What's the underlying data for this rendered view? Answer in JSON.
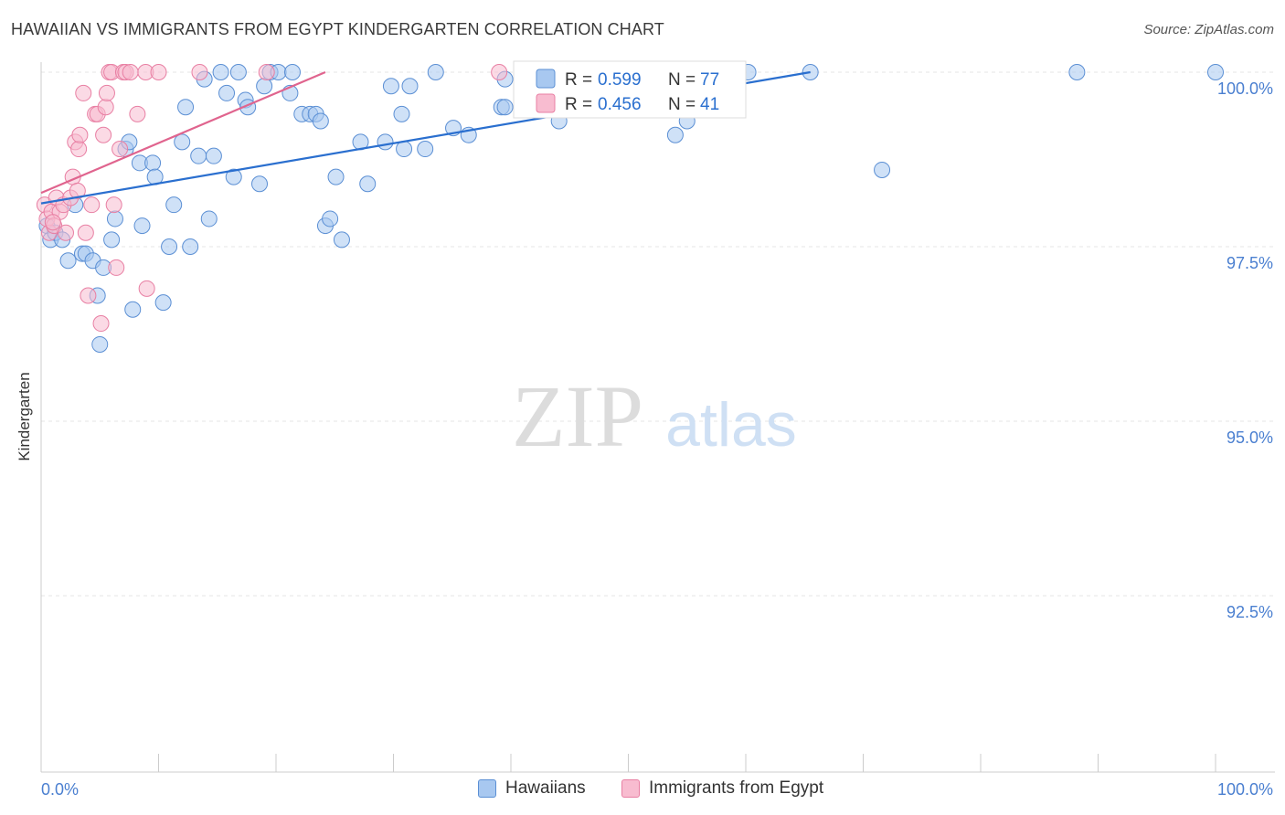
{
  "header": {
    "title": "HAWAIIAN VS IMMIGRANTS FROM EGYPT KINDERGARTEN CORRELATION CHART",
    "source": "Source: ZipAtlas.com"
  },
  "watermark": {
    "zip": "ZIP",
    "atlas": "atlas"
  },
  "colors": {
    "blue_fill": "#a8c8f0",
    "blue_stroke": "#5b8fd4",
    "blue_line": "#2a6fcf",
    "pink_fill": "#f8bcd0",
    "pink_stroke": "#e87fa3",
    "pink_line": "#e0648e",
    "tick_label": "#4a7fd0",
    "grid": "#e4e4e4"
  },
  "legend_top": {
    "rows": [
      {
        "r_label": "R = ",
        "r_value": "0.599",
        "n_label": "N = ",
        "n_value": "77"
      },
      {
        "r_label": "R = ",
        "r_value": "0.456",
        "n_label": "N = ",
        "n_value": "41"
      }
    ]
  },
  "chart_data": {
    "type": "scatter",
    "title": "HAWAIIAN VS IMMIGRANTS FROM EGYPT KINDERGARTEN CORRELATION CHART",
    "xlabel": "",
    "ylabel": "Kindergarten",
    "xlim": [
      0,
      100
    ],
    "ylim": [
      90.2,
      100.4
    ],
    "x_tick_labels": [
      "0.0%",
      "100.0%"
    ],
    "y_ticks": [
      {
        "value": 100.0,
        "label": "100.0%"
      },
      {
        "value": 97.5,
        "label": "97.5%"
      },
      {
        "value": 95.0,
        "label": "95.0%"
      },
      {
        "value": 92.5,
        "label": "92.5%"
      }
    ],
    "grid": true,
    "series": [
      {
        "name": "Hawaiians",
        "r": 0.599,
        "n": 77,
        "trend": {
          "x": [
            0,
            65.5
          ],
          "y": [
            98.12,
            100.0
          ]
        },
        "points": [
          [
            0.5,
            97.8
          ],
          [
            0.8,
            97.6
          ],
          [
            1.2,
            97.7
          ],
          [
            1.8,
            97.6
          ],
          [
            2.3,
            97.3
          ],
          [
            2.9,
            98.1
          ],
          [
            3.5,
            97.4
          ],
          [
            3.8,
            97.4
          ],
          [
            4.4,
            97.3
          ],
          [
            4.8,
            96.8
          ],
          [
            5.3,
            97.2
          ],
          [
            6.0,
            97.6
          ],
          [
            6.3,
            97.9
          ],
          [
            7.2,
            98.9
          ],
          [
            7.5,
            99.0
          ],
          [
            7.8,
            96.6
          ],
          [
            8.4,
            98.7
          ],
          [
            8.6,
            97.8
          ],
          [
            9.5,
            98.7
          ],
          [
            9.7,
            98.5
          ],
          [
            10.4,
            96.7
          ],
          [
            10.9,
            97.5
          ],
          [
            11.3,
            98.1
          ],
          [
            12.0,
            99.0
          ],
          [
            12.3,
            99.5
          ],
          [
            12.7,
            97.5
          ],
          [
            13.4,
            98.8
          ],
          [
            13.9,
            99.9
          ],
          [
            14.3,
            97.9
          ],
          [
            14.7,
            98.8
          ],
          [
            15.3,
            100.0
          ],
          [
            15.8,
            99.7
          ],
          [
            16.4,
            98.5
          ],
          [
            16.8,
            100.0
          ],
          [
            17.4,
            99.6
          ],
          [
            17.6,
            99.5
          ],
          [
            18.6,
            98.4
          ],
          [
            19.0,
            99.8
          ],
          [
            19.5,
            100.0
          ],
          [
            20.2,
            100.0
          ],
          [
            21.2,
            99.7
          ],
          [
            21.4,
            100.0
          ],
          [
            22.2,
            99.4
          ],
          [
            22.9,
            99.4
          ],
          [
            23.4,
            99.4
          ],
          [
            24.2,
            97.8
          ],
          [
            24.6,
            97.9
          ],
          [
            25.1,
            98.5
          ],
          [
            25.6,
            97.6
          ],
          [
            27.2,
            99.0
          ],
          [
            27.8,
            98.4
          ],
          [
            29.3,
            99.0
          ],
          [
            29.8,
            99.8
          ],
          [
            30.7,
            99.4
          ],
          [
            30.9,
            98.9
          ],
          [
            31.4,
            99.8
          ],
          [
            32.7,
            98.9
          ],
          [
            33.6,
            100.0
          ],
          [
            35.1,
            99.2
          ],
          [
            36.4,
            99.1
          ],
          [
            39.2,
            99.5
          ],
          [
            39.5,
            99.9
          ],
          [
            42.2,
            99.8
          ],
          [
            44.1,
            99.3
          ],
          [
            47.4,
            100.0
          ],
          [
            48.5,
            99.7
          ],
          [
            50.0,
            100.0
          ],
          [
            54.0,
            99.1
          ],
          [
            55.0,
            99.3
          ],
          [
            60.2,
            100.0
          ],
          [
            65.5,
            100.0
          ],
          [
            71.6,
            98.6
          ],
          [
            88.2,
            100.0
          ],
          [
            100.0,
            100.0
          ],
          [
            5.0,
            96.1
          ],
          [
            23.8,
            99.3
          ],
          [
            39.5,
            99.5
          ]
        ]
      },
      {
        "name": "Immigrants from Egypt",
        "r": 0.456,
        "n": 41,
        "trend": {
          "x": [
            0,
            24.2
          ],
          "y": [
            98.27,
            100.0
          ]
        },
        "points": [
          [
            0.3,
            98.1
          ],
          [
            0.5,
            97.9
          ],
          [
            0.7,
            97.7
          ],
          [
            0.9,
            98.0
          ],
          [
            1.1,
            97.8
          ],
          [
            1.3,
            98.2
          ],
          [
            1.6,
            98.0
          ],
          [
            1.9,
            98.1
          ],
          [
            2.1,
            97.7
          ],
          [
            2.5,
            98.2
          ],
          [
            2.7,
            98.5
          ],
          [
            2.9,
            99.0
          ],
          [
            3.1,
            98.3
          ],
          [
            3.2,
            98.9
          ],
          [
            3.3,
            99.1
          ],
          [
            3.6,
            99.7
          ],
          [
            3.8,
            97.7
          ],
          [
            4.0,
            96.8
          ],
          [
            4.3,
            98.1
          ],
          [
            4.6,
            99.4
          ],
          [
            4.8,
            99.4
          ],
          [
            5.1,
            96.4
          ],
          [
            5.3,
            99.1
          ],
          [
            5.5,
            99.5
          ],
          [
            5.6,
            99.7
          ],
          [
            5.8,
            100.0
          ],
          [
            6.0,
            100.0
          ],
          [
            6.2,
            98.1
          ],
          [
            6.4,
            97.2
          ],
          [
            6.7,
            98.9
          ],
          [
            7.0,
            100.0
          ],
          [
            7.2,
            100.0
          ],
          [
            7.6,
            100.0
          ],
          [
            8.2,
            99.4
          ],
          [
            8.9,
            100.0
          ],
          [
            9.0,
            96.9
          ],
          [
            10.0,
            100.0
          ],
          [
            13.5,
            100.0
          ],
          [
            19.2,
            100.0
          ],
          [
            39.0,
            100.0
          ],
          [
            1.0,
            97.85
          ]
        ]
      }
    ]
  }
}
